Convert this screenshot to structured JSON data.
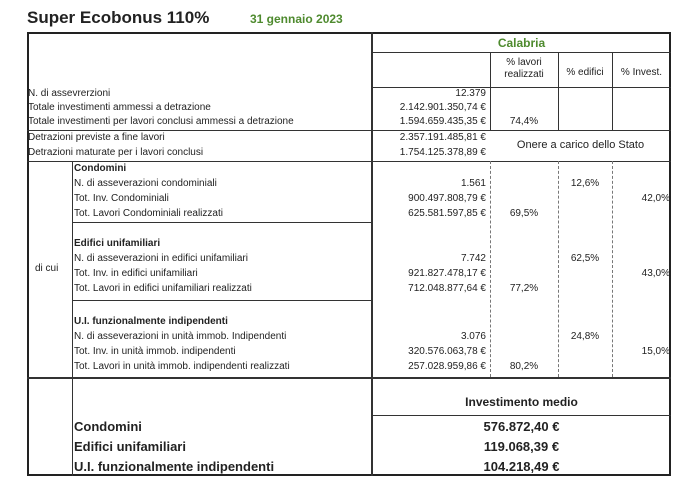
{
  "title": "Super Ecobonus 110%",
  "date": "31 gennaio 2023",
  "colors": {
    "green": "#4e8a2e"
  },
  "header": {
    "region": "Calabria",
    "col_lavori": "% lavori realizzati",
    "col_edifici": "% edifici",
    "col_invest": "% Invest."
  },
  "rows": [
    {
      "label": "N. di assevrerzioni",
      "value": "12.379"
    },
    {
      "label": "Totale investimenti ammessi a detrazione",
      "value": "2.142.901.350,74 €"
    },
    {
      "label": "Totale investimenti per lavori conclusi ammessi a detrazione",
      "value": "1.594.659.435,35 €",
      "lavori": "74,4%"
    },
    {
      "label": "Detrazioni previste a fine lavori",
      "value": "2.357.191.485,81 €"
    },
    {
      "label": "Detrazioni maturate per i lavori conclusi",
      "value": "1.754.125.378,89 €"
    }
  ],
  "onere": "Onere a carico dello Stato",
  "di_cui": "di cui",
  "groups": [
    {
      "title": "Condomini",
      "rows": [
        {
          "label": "N. di asseverazioni condominiali",
          "value": "1.561",
          "edifici": "12,6%"
        },
        {
          "label": "Tot. Inv. Condominiali",
          "value": "900.497.808,79 €",
          "invest": "42,0%"
        },
        {
          "label": "Tot. Lavori Condominiali realizzati",
          "value": "625.581.597,85 €",
          "lavori": "69,5%"
        }
      ]
    },
    {
      "title": "Edifici unifamiliari",
      "rows": [
        {
          "label": "N. di asseverazioni in edifici unifamiliari",
          "value": "7.742",
          "edifici": "62,5%"
        },
        {
          "label": "Tot. Inv. in edifici unifamiliari",
          "value": "921.827.478,17 €",
          "invest": "43,0%"
        },
        {
          "label": "Tot. Lavori in edifici unifamiliari realizzati",
          "value": "712.048.877,64 €",
          "lavori": "77,2%"
        }
      ]
    },
    {
      "title": "U.I. funzionalmente indipendenti",
      "rows": [
        {
          "label": "N. di asseverazioni in unità immob. Indipendenti",
          "value": "3.076",
          "edifici": "24,8%"
        },
        {
          "label": "Tot. Inv. in unità immob. indipendenti",
          "value": "320.576.063,78 €",
          "invest": "15,0%"
        },
        {
          "label": "Tot. Lavori in unità immob. indipendenti realizzati",
          "value": "257.028.959,86 €",
          "lavori": "80,2%"
        }
      ]
    }
  ],
  "investimento": {
    "title": "Investimento medio",
    "rows": [
      {
        "label": "Condomini",
        "value": "576.872,40 €"
      },
      {
        "label": "Edifici unifamiliari",
        "value": "119.068,39 €"
      },
      {
        "label": "U.I. funzionalmente indipendenti",
        "value": "104.218,49 €"
      }
    ]
  }
}
